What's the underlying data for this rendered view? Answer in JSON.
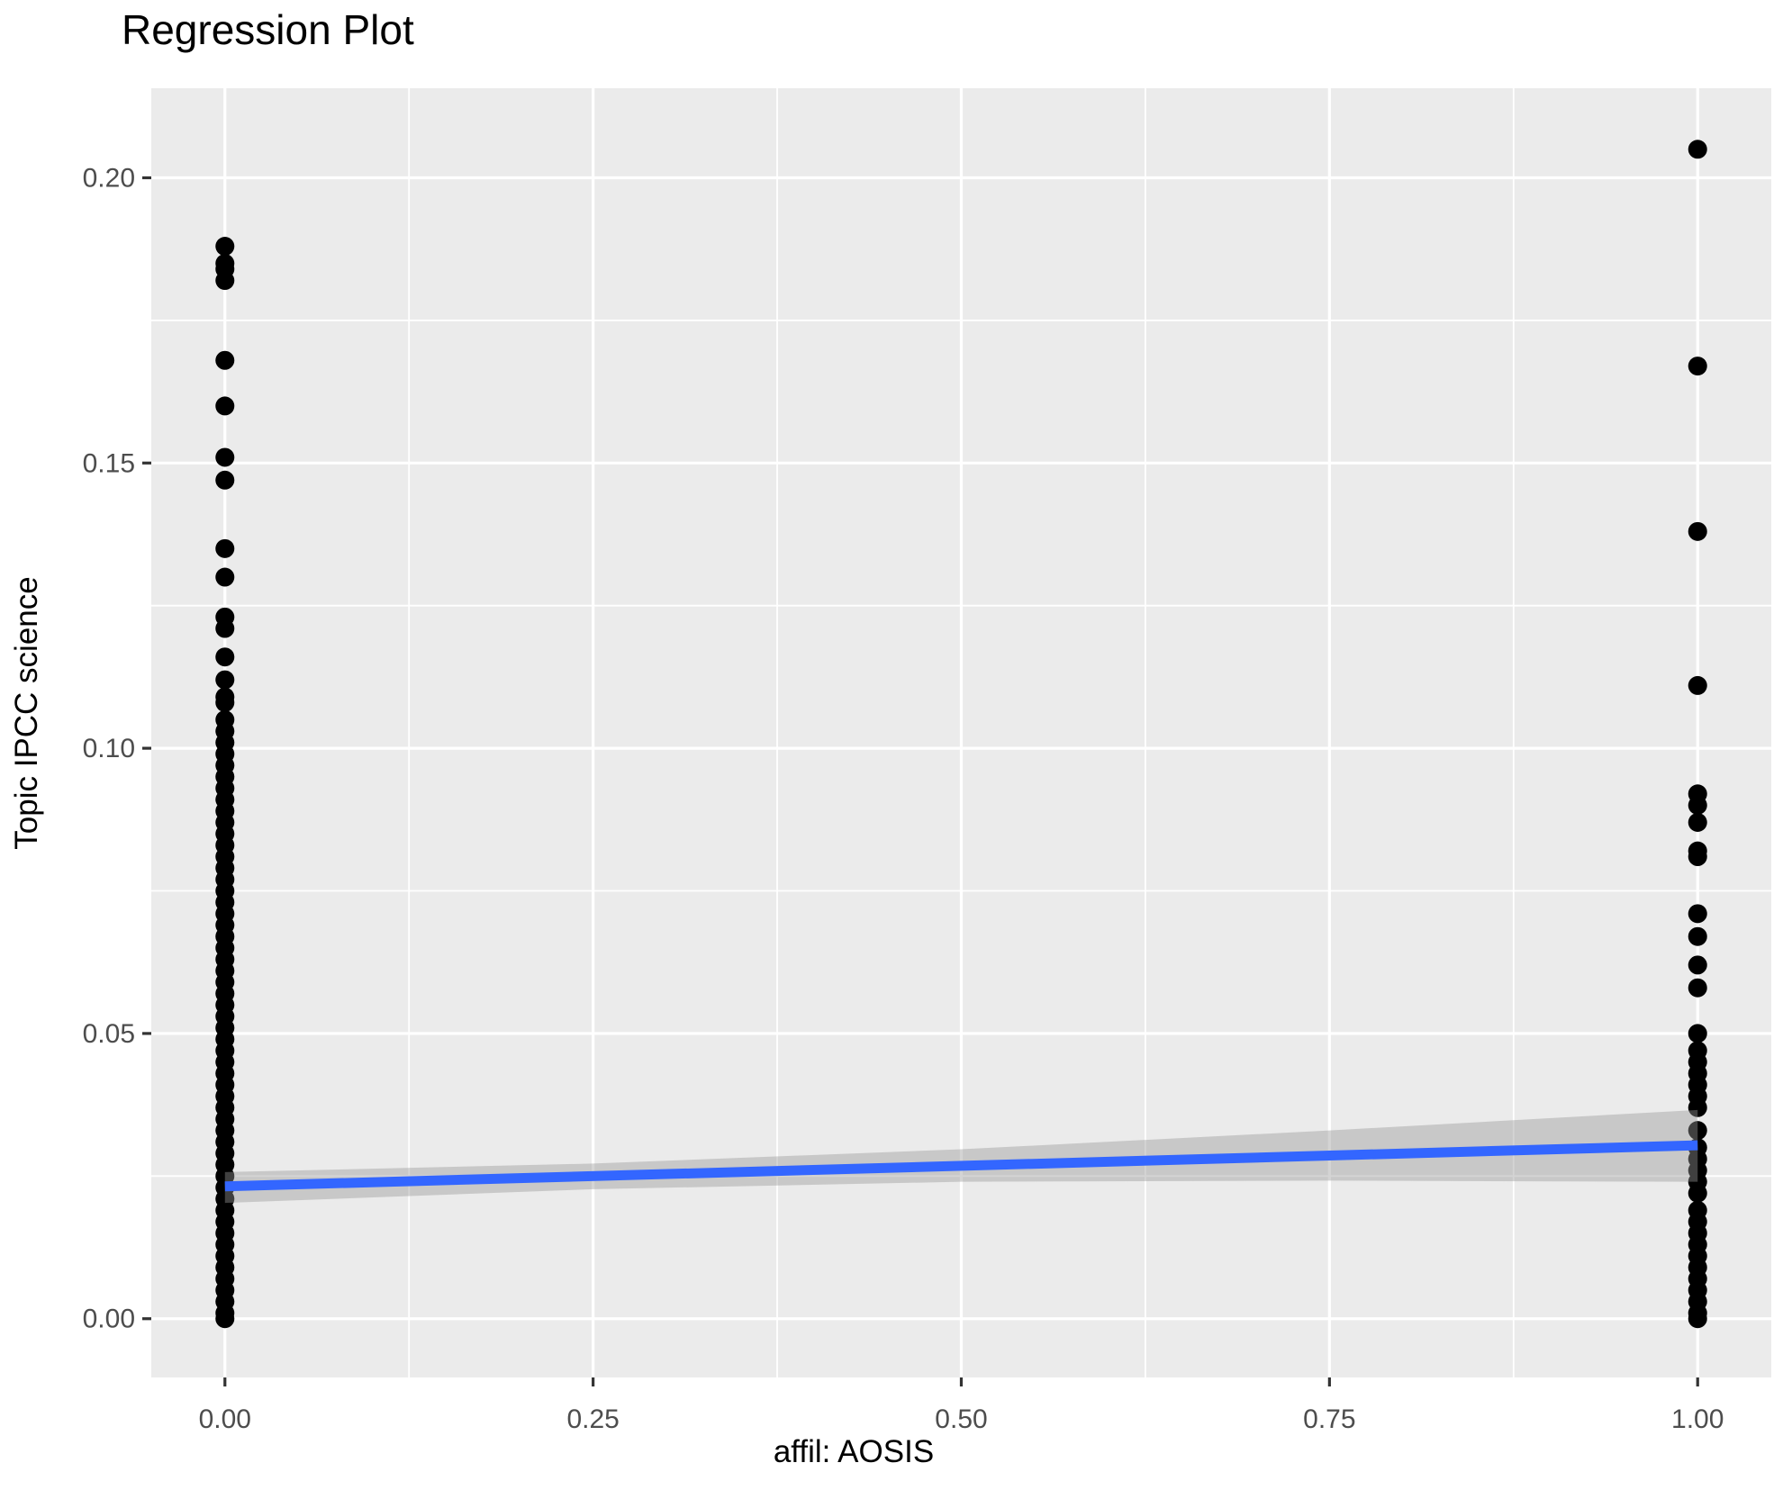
{
  "chart_data": {
    "type": "scatter",
    "title": "Regression Plot",
    "xlabel": "affil: AOSIS",
    "ylabel": "Topic IPCC science",
    "xlim": [
      -0.05,
      1.05
    ],
    "ylim": [
      -0.0103,
      0.2157
    ],
    "x_ticks": [
      0.0,
      0.25,
      0.5,
      0.75,
      1.0
    ],
    "x_tick_labels": [
      "0.00",
      "0.25",
      "0.50",
      "0.75",
      "1.00"
    ],
    "y_ticks": [
      0.0,
      0.05,
      0.1,
      0.15,
      0.2
    ],
    "y_tick_labels": [
      "0.00",
      "0.05",
      "0.10",
      "0.15",
      "0.20"
    ],
    "x_minor_gridlines": [
      0.125,
      0.375,
      0.625,
      0.875
    ],
    "y_minor_gridlines": [
      0.025,
      0.075,
      0.125,
      0.175
    ],
    "grid": true,
    "legend": "none",
    "panel_background": "#EBEBEB",
    "gridline_color": "#FFFFFF",
    "tick_label_color": "#4D4D4D",
    "tick_mark_color": "#333333",
    "point_color": "#000000",
    "series": [
      {
        "name": "affil 0",
        "x": 0,
        "y": [
          0.188,
          0.185,
          0.184,
          0.182,
          0.168,
          0.16,
          0.151,
          0.147,
          0.135,
          0.13,
          0.123,
          0.121,
          0.116,
          0.112,
          0.109,
          0.108,
          0.105,
          0.103,
          0.101,
          0.099,
          0.097,
          0.095,
          0.093,
          0.091,
          0.089,
          0.087,
          0.085,
          0.083,
          0.081,
          0.079,
          0.077,
          0.075,
          0.073,
          0.071,
          0.069,
          0.067,
          0.065,
          0.063,
          0.061,
          0.059,
          0.057,
          0.055,
          0.053,
          0.051,
          0.049,
          0.047,
          0.045,
          0.043,
          0.041,
          0.039,
          0.037,
          0.035,
          0.033,
          0.031,
          0.029,
          0.027,
          0.025,
          0.023,
          0.021,
          0.019,
          0.017,
          0.015,
          0.013,
          0.011,
          0.009,
          0.007,
          0.005,
          0.003,
          0.001,
          0.0
        ]
      },
      {
        "name": "affil 1",
        "x": 1,
        "y": [
          0.205,
          0.167,
          0.138,
          0.111,
          0.092,
          0.09,
          0.087,
          0.082,
          0.081,
          0.071,
          0.067,
          0.062,
          0.058,
          0.05,
          0.047,
          0.045,
          0.043,
          0.041,
          0.039,
          0.037,
          0.033,
          0.03,
          0.028,
          0.026,
          0.024,
          0.022,
          0.019,
          0.017,
          0.015,
          0.013,
          0.011,
          0.009,
          0.007,
          0.005,
          0.003,
          0.001,
          0.0
        ]
      }
    ],
    "regression_line": {
      "color": "#3366FF",
      "x": [
        0,
        1
      ],
      "y": [
        0.0232,
        0.0304
      ]
    },
    "confidence_band": {
      "color": "#999999",
      "opacity": 0.42,
      "x": [
        0,
        0.25,
        0.5,
        0.75,
        1
      ],
      "upper": [
        0.0257,
        0.0272,
        0.0297,
        0.033,
        0.0366
      ],
      "lower": [
        0.0203,
        0.0227,
        0.024,
        0.0242,
        0.024
      ]
    }
  }
}
